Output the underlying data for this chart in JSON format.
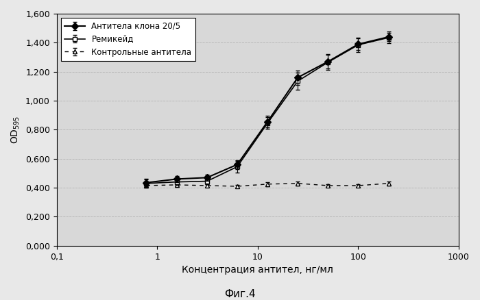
{
  "title": "",
  "xlabel": "Концентрация антител, нг/мл",
  "caption": "Фиг.4",
  "xlim": [
    0.1,
    1000
  ],
  "ylim": [
    0.0,
    1.6
  ],
  "yticks": [
    0.0,
    0.2,
    0.4,
    0.6,
    0.8,
    1.0,
    1.2,
    1.4,
    1.6
  ],
  "ytick_labels": [
    "0,000",
    "0,200",
    "0,400",
    "0,600",
    "0,800",
    "1,000",
    "1,200",
    "1,400",
    "1,600"
  ],
  "xtick_vals": [
    0.1,
    1,
    10,
    100,
    1000
  ],
  "xtick_labels": [
    "0,1",
    "1",
    "10",
    "100",
    "1000"
  ],
  "series1_x": [
    0.78,
    1.56,
    3.13,
    6.25,
    12.5,
    25,
    50,
    100,
    200
  ],
  "series1_y": [
    0.435,
    0.46,
    0.47,
    0.56,
    0.855,
    1.16,
    1.27,
    1.39,
    1.44
  ],
  "series1_yerr": [
    0.025,
    0.02,
    0.02,
    0.03,
    0.04,
    0.05,
    0.05,
    0.04,
    0.03
  ],
  "series1_label": "Антитела клона 20/5",
  "series2_x": [
    0.78,
    1.56,
    3.13,
    6.25,
    12.5,
    25,
    50,
    100,
    200
  ],
  "series2_y": [
    0.43,
    0.44,
    0.445,
    0.545,
    0.845,
    1.135,
    1.265,
    1.385,
    1.435
  ],
  "series2_yerr": [
    0.025,
    0.02,
    0.02,
    0.04,
    0.04,
    0.06,
    0.05,
    0.05,
    0.04
  ],
  "series2_label": "Ремикейд",
  "series3_x": [
    0.78,
    1.56,
    3.13,
    6.25,
    12.5,
    25,
    50,
    100,
    200
  ],
  "series3_y": [
    0.415,
    0.42,
    0.415,
    0.41,
    0.425,
    0.43,
    0.415,
    0.415,
    0.43
  ],
  "series3_yerr": [
    0.015,
    0.015,
    0.01,
    0.01,
    0.015,
    0.015,
    0.01,
    0.01,
    0.015
  ],
  "series3_label": "Контрольные антитела",
  "bg_color": "#e8e8e8",
  "plot_bg_color": "#d8d8d8",
  "grid_color": "#aaaaaa"
}
